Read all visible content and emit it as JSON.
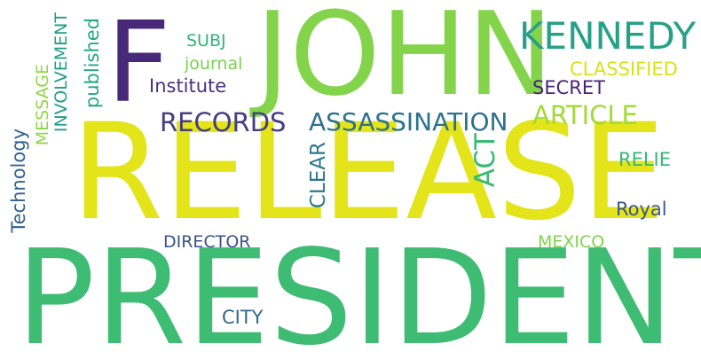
{
  "wordcloud": {
    "words": [
      {
        "id": "release",
        "text": "RELEASE",
        "color": "#e3e419"
      },
      {
        "id": "president",
        "text": "PRESIDENT",
        "color": "#3fbc73"
      },
      {
        "id": "john",
        "text": "JOHN",
        "color": "#84d44b"
      },
      {
        "id": "f",
        "text": "F",
        "color": "#482878"
      },
      {
        "id": "kennedy",
        "text": "KENNEDY",
        "color": "#26a188"
      },
      {
        "id": "records",
        "text": "RECORDS",
        "color": "#433e85"
      },
      {
        "id": "assassination",
        "text": "ASSASSINATION",
        "color": "#2c728e"
      },
      {
        "id": "article",
        "text": "ARTICLE",
        "color": "#a2da37"
      },
      {
        "id": "classified",
        "text": "CLASSIFIED",
        "color": "#d8e219"
      },
      {
        "id": "secret",
        "text": "SECRET",
        "color": "#482575"
      },
      {
        "id": "act",
        "text": "ACT",
        "color": "#3bbb75"
      },
      {
        "id": "clear",
        "text": "CLEAR",
        "color": "#2a788e"
      },
      {
        "id": "relie",
        "text": "RELIE",
        "color": "#35b779"
      },
      {
        "id": "royal",
        "text": "Royal",
        "color": "#39568c"
      },
      {
        "id": "director",
        "text": "DIRECTOR",
        "color": "#3b528b"
      },
      {
        "id": "mexico",
        "text": "MEXICO",
        "color": "#7fd34e"
      },
      {
        "id": "city",
        "text": "CITY",
        "color": "#31688e"
      },
      {
        "id": "subj",
        "text": "SUBJ",
        "color": "#2fb47c"
      },
      {
        "id": "journal",
        "text": "journal",
        "color": "#7ad151"
      },
      {
        "id": "institute",
        "text": "Institute",
        "color": "#46327e"
      },
      {
        "id": "published",
        "text": "published",
        "color": "#22a884"
      },
      {
        "id": "involvement",
        "text": "INVOLVEMENT",
        "color": "#1f9e89"
      },
      {
        "id": "message",
        "text": "MESSAGE",
        "color": "#8fd744"
      },
      {
        "id": "technology",
        "text": "Technology",
        "color": "#33638d"
      }
    ]
  }
}
